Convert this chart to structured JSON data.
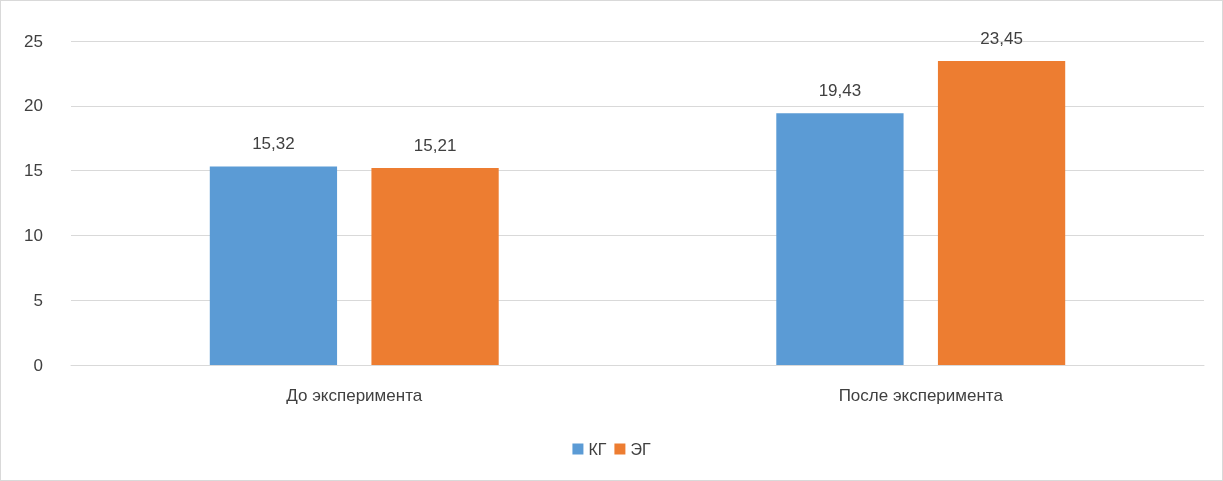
{
  "chart_data": {
    "type": "bar",
    "categories": [
      "До эксперимента",
      "После эксперимента"
    ],
    "series": [
      {
        "name": "КГ",
        "color": "#5b9bd5",
        "values": [
          15.32,
          19.43
        ],
        "value_labels": [
          "15,32",
          "19,43"
        ]
      },
      {
        "name": "ЭГ",
        "color": "#ed7d31",
        "values": [
          15.21,
          23.45
        ],
        "value_labels": [
          "15,21",
          "23,45"
        ]
      }
    ],
    "ylim": [
      0,
      25
    ],
    "yticks": [
      0,
      5,
      10,
      15,
      20,
      25
    ],
    "grid": "y",
    "legend": "bottom"
  }
}
